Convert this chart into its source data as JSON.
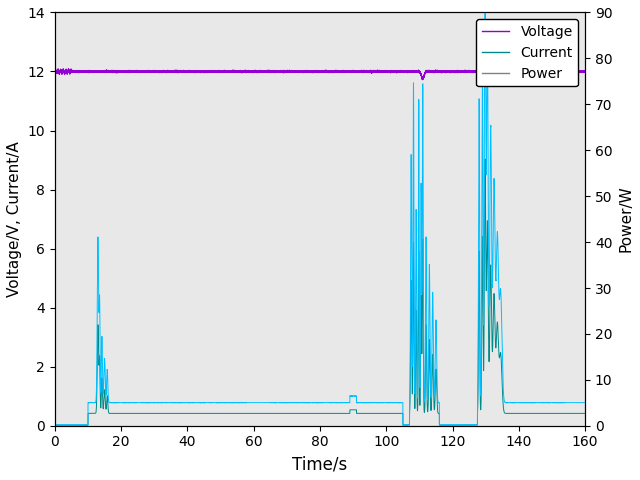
{
  "title": "",
  "xlabel": "Time/s",
  "ylabel_left": "Voltage/V, Current/A",
  "ylabel_right": "Power/W",
  "xlim": [
    0,
    160
  ],
  "ylim_left": [
    0,
    14
  ],
  "ylim_right": [
    0,
    90
  ],
  "xticks": [
    0,
    20,
    40,
    60,
    80,
    100,
    120,
    140,
    160
  ],
  "yticks_left": [
    0,
    2,
    4,
    6,
    8,
    10,
    12,
    14
  ],
  "yticks_right": [
    0,
    10,
    20,
    30,
    40,
    50,
    60,
    70,
    80,
    90
  ],
  "voltage_color": "#9400d3",
  "current_color": "#008b8b",
  "power_color": "#00bfff",
  "power_color_legend": "#808080",
  "background_color": "#ffffff",
  "plot_bg_color": "#e8e8e8",
  "legend_labels": [
    "Voltage",
    "Current",
    "Power"
  ],
  "legend_loc": "upper right",
  "figsize": [
    6.4,
    4.8
  ],
  "dpi": 100
}
